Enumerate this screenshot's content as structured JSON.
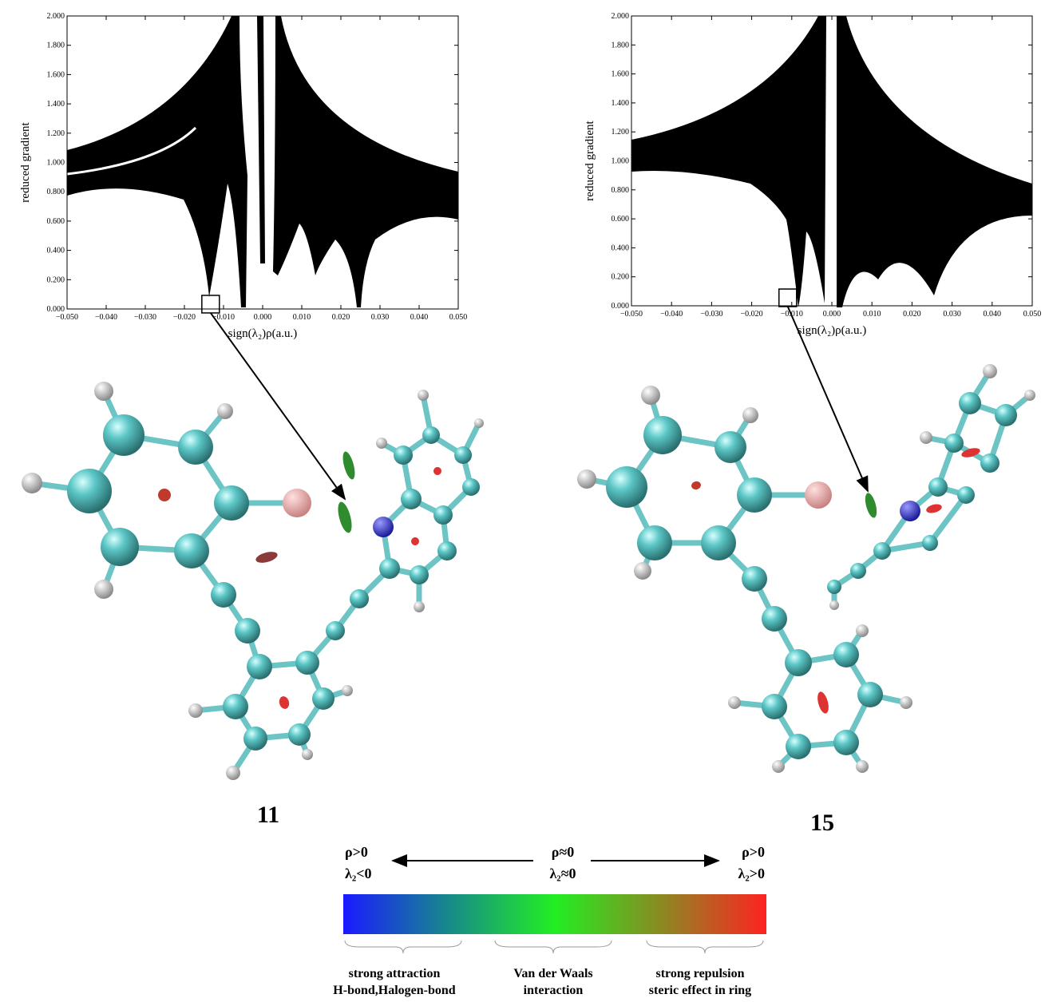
{
  "chart_data": [
    {
      "type": "scatter",
      "ylabel": "reduced gradient",
      "xlabel": "sign(λ₂)ρ(a.u.)",
      "xlim": [
        -0.05,
        0.05
      ],
      "ylim": [
        0,
        2
      ],
      "xticks": [
        {
          "value": -0.05,
          "label": "−0.050"
        },
        {
          "value": -0.04,
          "label": "−0.040"
        },
        {
          "value": -0.03,
          "label": "−0.030"
        },
        {
          "value": -0.02,
          "label": "−0.020"
        },
        {
          "value": -0.01,
          "label": "−0.010"
        },
        {
          "value": 0,
          "label": "0.000"
        },
        {
          "value": 0.01,
          "label": "0.010"
        },
        {
          "value": 0.02,
          "label": "0.020"
        },
        {
          "value": 0.03,
          "label": "0.030"
        },
        {
          "value": 0.04,
          "label": "0.040"
        },
        {
          "value": 0.05,
          "label": "0.050"
        }
      ],
      "yticks": [
        {
          "value": 0,
          "label": "0.000"
        },
        {
          "value": 0.2,
          "label": "0.200"
        },
        {
          "value": 0.4,
          "label": "0.400"
        },
        {
          "value": 0.6,
          "label": "0.600"
        },
        {
          "value": 0.8,
          "label": "0.800"
        },
        {
          "value": 1,
          "label": "1.000"
        },
        {
          "value": 1.2,
          "label": "1.200"
        },
        {
          "value": 1.4,
          "label": "1.400"
        },
        {
          "value": 1.6,
          "label": "1.600"
        },
        {
          "value": 1.8,
          "label": "1.800"
        },
        {
          "value": 2,
          "label": "2.000"
        }
      ],
      "highlight": {
        "x": -0.0133,
        "y": 0.033
      }
    },
    {
      "type": "scatter",
      "ylabel": "reduced gradient",
      "xlabel": "sign(λ₂)ρ(a.u.)",
      "xlim": [
        -0.05,
        0.05
      ],
      "ylim": [
        0,
        2
      ],
      "xticks": [
        {
          "value": -0.05,
          "label": "−0.050"
        },
        {
          "value": -0.04,
          "label": "−0.040"
        },
        {
          "value": -0.03,
          "label": "−0.030"
        },
        {
          "value": -0.02,
          "label": "−0.020"
        },
        {
          "value": -0.01,
          "label": "−0.010"
        },
        {
          "value": 0,
          "label": "0.000"
        },
        {
          "value": 0.01,
          "label": "0.010"
        },
        {
          "value": 0.02,
          "label": "0.020"
        },
        {
          "value": 0.03,
          "label": "0.030"
        },
        {
          "value": 0.04,
          "label": "0.040"
        },
        {
          "value": 0.05,
          "label": "0.050"
        }
      ],
      "yticks": [
        {
          "value": 0,
          "label": "0.000"
        },
        {
          "value": 0.2,
          "label": "0.200"
        },
        {
          "value": 0.4,
          "label": "0.400"
        },
        {
          "value": 0.6,
          "label": "0.600"
        },
        {
          "value": 0.8,
          "label": "0.800"
        },
        {
          "value": 1,
          "label": "1.000"
        },
        {
          "value": 1.2,
          "label": "1.200"
        },
        {
          "value": 1.4,
          "label": "1.400"
        },
        {
          "value": 1.6,
          "label": "1.600"
        },
        {
          "value": 1.8,
          "label": "1.800"
        },
        {
          "value": 2,
          "label": "2.000"
        }
      ],
      "highlight": {
        "x": -0.011,
        "y": 0.055
      }
    }
  ],
  "molecules": [
    "11",
    "15"
  ],
  "colorbar": {
    "left": [
      "ρ>0",
      "λ₂<0"
    ],
    "center": [
      "ρ≈0",
      "λ₂≈0"
    ],
    "right": [
      "ρ>0",
      "λ₂>0"
    ],
    "colors": [
      "#1a1aff",
      "#178a8a",
      "#22ee22",
      "#8a8a22",
      "#ff2222"
    ],
    "descriptions": [
      [
        "strong attraction",
        "H-bond,Halogen-bond"
      ],
      [
        "Van der Waals",
        "interaction"
      ],
      [
        "strong repulsion",
        "steric effect in ring"
      ]
    ]
  }
}
